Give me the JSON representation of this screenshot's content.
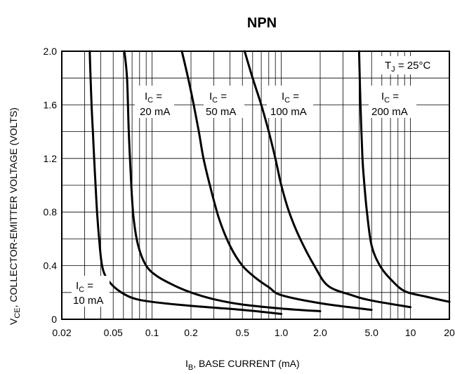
{
  "chart_data": {
    "type": "line",
    "title": "NPN",
    "xlabel": {
      "main": "I",
      "sub": "B",
      "rest": ", BASE CURRENT (mA)"
    },
    "ylabel": {
      "main": "V",
      "sub": "CE",
      "rest": ", COLLECTOR-EMITTER VOLTAGE (VOLTS)"
    },
    "x_scale": "log",
    "xlim": [
      0.02,
      20
    ],
    "ylim": [
      0,
      2.0
    ],
    "x_ticks": [
      {
        "value": 0.02,
        "label": "0.02"
      },
      {
        "value": 0.05,
        "label": "0.05"
      },
      {
        "value": 0.1,
        "label": "0.1"
      },
      {
        "value": 0.2,
        "label": "0.2"
      },
      {
        "value": 0.5,
        "label": "0.5"
      },
      {
        "value": 1.0,
        "label": "1.0"
      },
      {
        "value": 2.0,
        "label": "2.0"
      },
      {
        "value": 5.0,
        "label": "5.0"
      },
      {
        "value": 10,
        "label": "10"
      },
      {
        "value": 20,
        "label": "20"
      }
    ],
    "y_ticks": [
      {
        "value": 0,
        "label": "0"
      },
      {
        "value": 0.4,
        "label": "0.4"
      },
      {
        "value": 0.8,
        "label": "0.8"
      },
      {
        "value": 1.2,
        "label": "1.2"
      },
      {
        "value": 1.6,
        "label": "1.6"
      },
      {
        "value": 2.0,
        "label": "2.0"
      }
    ],
    "grid": true,
    "annotation": {
      "main": "T",
      "sub": "J",
      "rest": " = 25°C"
    },
    "series": [
      {
        "name": "10 mA",
        "label_line1": "I",
        "label_sub": "C",
        "label_eq": " =",
        "label_line2": "10 mA",
        "x": [
          0.0329,
          0.0334,
          0.034,
          0.0348,
          0.0356,
          0.0365,
          0.0375,
          0.0389,
          0.041,
          0.045,
          0.054,
          0.07,
          0.1,
          0.2,
          0.5,
          1.0
        ],
        "y": [
          2.0,
          1.8,
          1.6,
          1.4,
          1.2,
          1.0,
          0.8,
          0.6,
          0.4,
          0.3,
          0.22,
          0.16,
          0.13,
          0.1,
          0.07,
          0.04
        ]
      },
      {
        "name": "20 mA",
        "label_line1": "I",
        "label_sub": "C",
        "label_eq": " =",
        "label_line2": "20 mA",
        "x": [
          0.061,
          0.064,
          0.066,
          0.069,
          0.072,
          0.078,
          0.09,
          0.11,
          0.15,
          0.2,
          0.3,
          0.5,
          1.0,
          2.0
        ],
        "y": [
          2.0,
          1.8,
          1.4,
          1.0,
          0.75,
          0.55,
          0.4,
          0.32,
          0.25,
          0.2,
          0.15,
          0.11,
          0.08,
          0.06
        ]
      },
      {
        "name": "50 mA",
        "label_line1": "I",
        "label_sub": "C",
        "label_eq": " =",
        "label_line2": "50 mA",
        "x": [
          0.17,
          0.19,
          0.21,
          0.23,
          0.25,
          0.28,
          0.33,
          0.4,
          0.5,
          0.65,
          0.8,
          1.0,
          2.0,
          5.0
        ],
        "y": [
          2.0,
          1.8,
          1.6,
          1.4,
          1.2,
          1.0,
          0.75,
          0.55,
          0.4,
          0.3,
          0.24,
          0.18,
          0.12,
          0.07
        ]
      },
      {
        "name": "100 mA",
        "label_line1": "I",
        "label_sub": "C",
        "label_eq": " =",
        "label_line2": "100 mA",
        "x": [
          0.52,
          0.6,
          0.7,
          0.8,
          0.9,
          1.0,
          1.15,
          1.4,
          1.8,
          2.3,
          3.5,
          5.0,
          10.0
        ],
        "y": [
          2.0,
          1.8,
          1.6,
          1.4,
          1.2,
          1.0,
          0.8,
          0.6,
          0.4,
          0.25,
          0.18,
          0.14,
          0.09
        ]
      },
      {
        "name": "200 mA",
        "label_line1": "I",
        "label_sub": "C",
        "label_eq": " =",
        "label_line2": "200 mA",
        "x": [
          4.0,
          4.1,
          4.25,
          4.4,
          4.6,
          5.0,
          5.8,
          7.0,
          9.0,
          13.0,
          20.0
        ],
        "y": [
          2.0,
          1.6,
          1.2,
          1.0,
          0.8,
          0.55,
          0.4,
          0.3,
          0.21,
          0.17,
          0.13
        ]
      }
    ]
  }
}
